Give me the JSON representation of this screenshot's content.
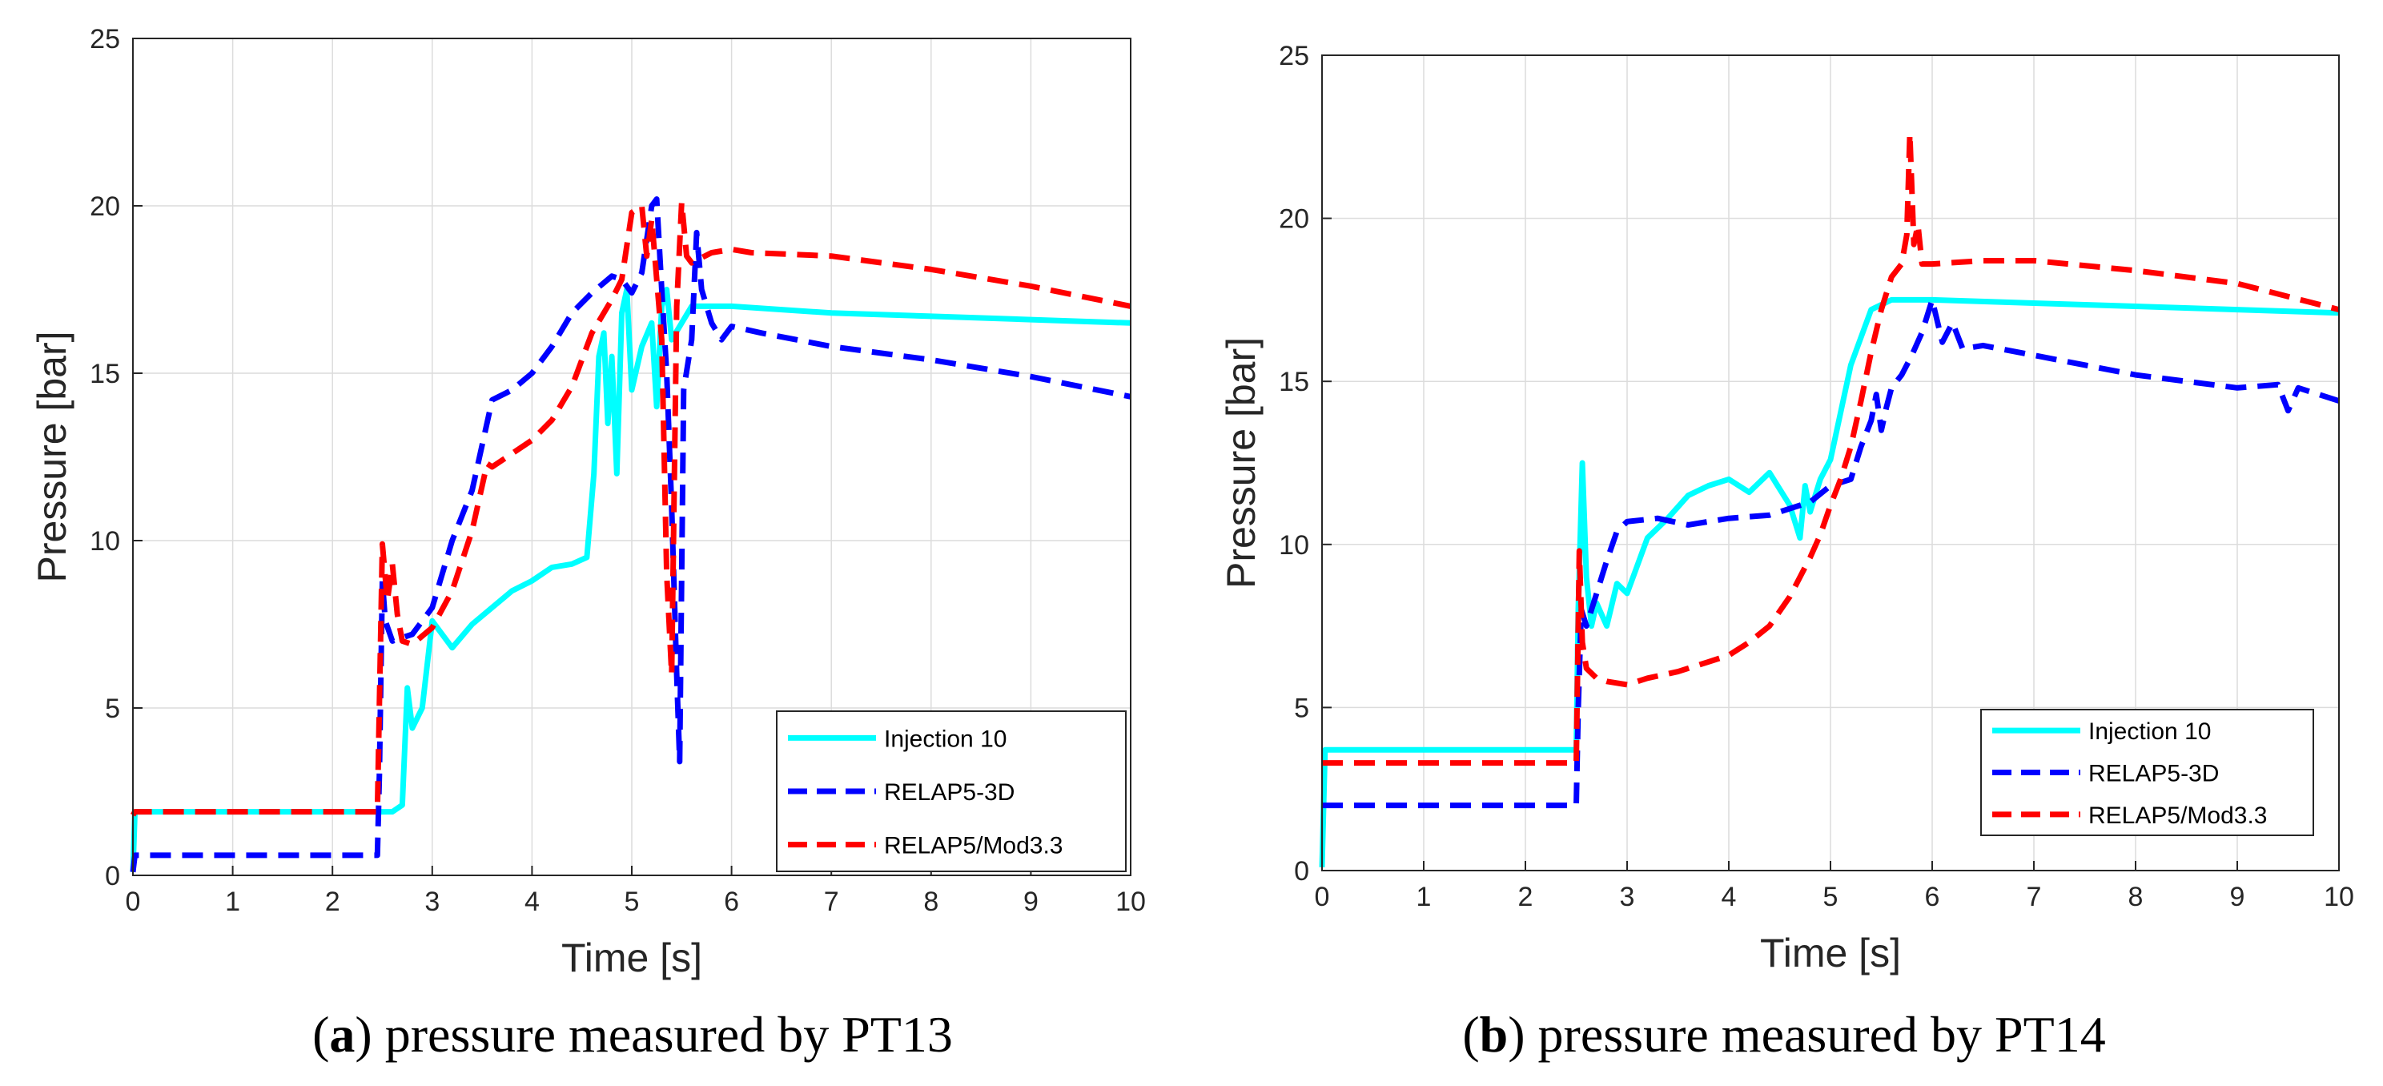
{
  "colors": {
    "injection": "#00ffff",
    "relap5_3d": "#0000ff",
    "relap5_mod": "#ff0000",
    "grid": "#dcdcdc",
    "axis": "#262626"
  },
  "chart_data": [
    {
      "type": "line",
      "panel_letter": "a",
      "caption": "pressure measured by PT13",
      "title": "",
      "xlabel": "Time [s]",
      "ylabel": "Pressure [bar]",
      "xlim": [
        0,
        10
      ],
      "ylim": [
        0,
        25
      ],
      "xticks": [
        "0",
        "1",
        "2",
        "3",
        "4",
        "5",
        "6",
        "7",
        "8",
        "9",
        "10"
      ],
      "yticks": [
        "0",
        "5",
        "10",
        "15",
        "20",
        "25"
      ],
      "grid": true,
      "legend_position": "bottom-right",
      "series": [
        {
          "name": "Injection 10",
          "style": "solid",
          "color_key": "injection",
          "x": [
            0,
            0.02,
            2.6,
            2.7,
            2.75,
            2.8,
            2.9,
            3.0,
            3.2,
            3.4,
            3.6,
            3.8,
            4.0,
            4.2,
            4.4,
            4.55,
            4.62,
            4.67,
            4.72,
            4.76,
            4.8,
            4.85,
            4.9,
            4.95,
            5.0,
            5.1,
            5.2,
            5.25,
            5.3,
            5.35,
            5.4,
            5.5,
            5.6,
            5.8,
            6.0,
            7.0,
            8.0,
            9.0,
            10.0
          ],
          "y": [
            0.1,
            1.9,
            1.9,
            2.1,
            5.6,
            4.4,
            5.0,
            7.6,
            6.8,
            7.5,
            8.0,
            8.5,
            8.8,
            9.2,
            9.3,
            9.5,
            12.0,
            15.5,
            16.2,
            13.5,
            15.5,
            12.0,
            16.8,
            17.5,
            14.5,
            15.8,
            16.5,
            14.0,
            17.0,
            17.5,
            16.0,
            16.5,
            17.0,
            17.0,
            17.0,
            16.8,
            16.7,
            16.6,
            16.5
          ]
        },
        {
          "name": "RELAP5-3D",
          "style": "dashed",
          "color_key": "relap5_3d",
          "x": [
            0,
            0.02,
            2.45,
            2.47,
            2.5,
            2.53,
            2.6,
            2.8,
            3.0,
            3.2,
            3.4,
            3.6,
            3.8,
            4.0,
            4.2,
            4.4,
            4.6,
            4.8,
            4.9,
            5.0,
            5.1,
            5.2,
            5.25,
            5.3,
            5.35,
            5.4,
            5.45,
            5.48,
            5.52,
            5.6,
            5.65,
            5.7,
            5.8,
            5.9,
            6.0,
            6.3,
            7.0,
            8.0,
            9.0,
            10.0
          ],
          "y": [
            0.1,
            0.6,
            0.6,
            3.0,
            8.8,
            7.6,
            7.0,
            7.2,
            8.0,
            10.0,
            11.5,
            14.2,
            14.5,
            15.0,
            15.8,
            16.8,
            17.4,
            17.9,
            17.8,
            17.4,
            18.0,
            20.0,
            20.2,
            17.5,
            15.0,
            11.0,
            6.0,
            3.4,
            14.5,
            16.0,
            19.2,
            17.5,
            16.5,
            16.0,
            16.4,
            16.2,
            15.8,
            15.4,
            14.9,
            14.3
          ]
        },
        {
          "name": "RELAP5/Mod3.3",
          "style": "dashed",
          "color_key": "relap5_mod",
          "x": [
            0,
            0.02,
            2.45,
            2.5,
            2.55,
            2.6,
            2.65,
            2.7,
            2.8,
            3.0,
            3.2,
            3.4,
            3.55,
            3.6,
            3.8,
            4.0,
            4.2,
            4.4,
            4.6,
            4.8,
            4.9,
            5.0,
            5.1,
            5.15,
            5.2,
            5.3,
            5.35,
            5.4,
            5.45,
            5.5,
            5.55,
            5.6,
            5.8,
            6.0,
            6.2,
            7.0,
            8.0,
            9.0,
            10.0
          ],
          "y": [
            1.8,
            1.9,
            1.9,
            9.9,
            8.2,
            9.3,
            7.8,
            7.0,
            6.9,
            7.4,
            8.5,
            10.3,
            12.3,
            12.2,
            12.6,
            13.0,
            13.6,
            14.6,
            16.2,
            17.2,
            17.8,
            19.8,
            20.0,
            18.5,
            19.6,
            16.0,
            9.0,
            6.0,
            17.0,
            20.1,
            18.5,
            18.3,
            18.6,
            18.7,
            18.6,
            18.5,
            18.1,
            17.6,
            17.0
          ]
        }
      ]
    },
    {
      "type": "line",
      "panel_letter": "b",
      "caption": "pressure measured by PT14",
      "title": "",
      "xlabel": "Time [s]",
      "ylabel": "Pressure [bar]",
      "xlim": [
        0,
        10
      ],
      "ylim": [
        0,
        25
      ],
      "xticks": [
        "0",
        "1",
        "2",
        "3",
        "4",
        "5",
        "6",
        "7",
        "8",
        "9",
        "10"
      ],
      "yticks": [
        "0",
        "5",
        "10",
        "15",
        "20",
        "25"
      ],
      "grid": true,
      "legend_position": "bottom-right",
      "series": [
        {
          "name": "Injection 10",
          "style": "solid",
          "color_key": "injection",
          "x": [
            0,
            0.03,
            2.5,
            2.52,
            2.56,
            2.6,
            2.65,
            2.7,
            2.8,
            2.9,
            3.0,
            3.2,
            3.4,
            3.6,
            3.8,
            4.0,
            4.2,
            4.4,
            4.6,
            4.7,
            4.75,
            4.8,
            4.9,
            5.0,
            5.2,
            5.4,
            5.6,
            6.0,
            7.0,
            8.0,
            9.0,
            10.0
          ],
          "y": [
            0.1,
            3.7,
            3.7,
            8.0,
            12.5,
            9.0,
            7.5,
            8.2,
            7.5,
            8.8,
            8.5,
            10.2,
            10.8,
            11.5,
            11.8,
            12.0,
            11.6,
            12.2,
            11.2,
            10.2,
            11.8,
            11.0,
            12.0,
            12.6,
            15.5,
            17.2,
            17.5,
            17.5,
            17.4,
            17.3,
            17.2,
            17.1
          ]
        },
        {
          "name": "RELAP5-3D",
          "style": "dashed",
          "color_key": "relap5_3d",
          "x": [
            0,
            2.5,
            2.52,
            2.55,
            2.6,
            2.7,
            2.8,
            2.9,
            3.0,
            3.3,
            3.6,
            4.0,
            4.4,
            4.8,
            5.0,
            5.2,
            5.3,
            5.4,
            5.45,
            5.5,
            5.55,
            5.6,
            5.7,
            5.8,
            5.9,
            6.0,
            6.1,
            6.2,
            6.3,
            6.5,
            7.0,
            8.0,
            9.0,
            9.4,
            9.5,
            9.6,
            10.0
          ],
          "y": [
            2.0,
            2.0,
            5.0,
            8.0,
            7.5,
            8.5,
            9.5,
            10.4,
            10.7,
            10.8,
            10.6,
            10.8,
            10.9,
            11.3,
            11.8,
            12.0,
            13.0,
            13.8,
            14.6,
            13.5,
            14.2,
            14.8,
            15.2,
            15.8,
            16.5,
            17.5,
            16.2,
            16.8,
            16.0,
            16.1,
            15.8,
            15.2,
            14.8,
            14.9,
            14.1,
            14.8,
            14.4
          ]
        },
        {
          "name": "RELAP5/Mod3.3",
          "style": "dashed",
          "color_key": "relap5_mod",
          "x": [
            0,
            2.5,
            2.53,
            2.56,
            2.6,
            2.7,
            2.8,
            3.0,
            3.2,
            3.5,
            3.8,
            4.0,
            4.2,
            4.4,
            4.6,
            4.8,
            4.9,
            5.0,
            5.1,
            5.2,
            5.3,
            5.4,
            5.5,
            5.6,
            5.7,
            5.75,
            5.78,
            5.82,
            5.86,
            5.9,
            6.0,
            6.5,
            7.0,
            8.0,
            9.0,
            10.0
          ],
          "y": [
            3.3,
            3.3,
            9.8,
            7.0,
            6.2,
            5.9,
            5.8,
            5.7,
            5.9,
            6.1,
            6.4,
            6.6,
            7.0,
            7.5,
            8.4,
            9.6,
            10.3,
            11.2,
            12.0,
            13.0,
            14.4,
            15.9,
            17.2,
            18.2,
            18.6,
            19.5,
            22.6,
            19.2,
            19.8,
            18.6,
            18.6,
            18.7,
            18.7,
            18.4,
            18.0,
            17.2
          ]
        }
      ]
    }
  ]
}
